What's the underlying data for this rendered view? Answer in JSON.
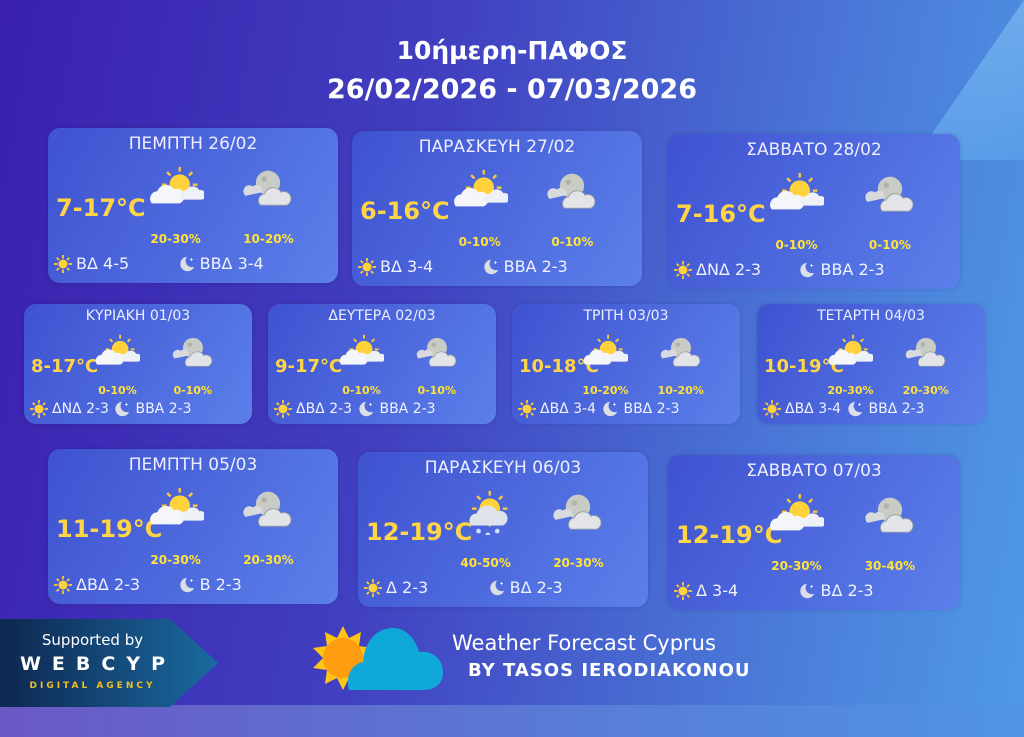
{
  "header": {
    "title": "10ήμερη-ΠΑΦΟΣ",
    "range": "26/02/2026 - 07/03/2026"
  },
  "colors": {
    "temp": "#ffd447",
    "pop": "#ffe23b",
    "card": "#4a66dc"
  },
  "days": [
    {
      "date": "ΠΕΜΠΤΗ 26/02",
      "temp": "7-17°C",
      "day_icon": "partly-sunny-icon",
      "night_icon": "cloudy-moon-icon",
      "day_pop": "20-30%",
      "night_pop": "10-20%",
      "day_wind": "ΒΔ 4-5",
      "night_wind": "ΒΒΔ 3-4"
    },
    {
      "date": "ΠΑΡΑΣΚΕΥΗ 27/02",
      "temp": "6-16°C",
      "day_icon": "partly-sunny-icon",
      "night_icon": "cloudy-moon-icon",
      "day_pop": "0-10%",
      "night_pop": "0-10%",
      "day_wind": "ΒΔ 3-4",
      "night_wind": "ΒΒΑ 2-3"
    },
    {
      "date": "ΣΑΒΒΑΤΟ 28/02",
      "temp": "7-16°C",
      "day_icon": "partly-sunny-icon",
      "night_icon": "cloudy-moon-icon",
      "day_pop": "0-10%",
      "night_pop": "0-10%",
      "day_wind": "ΔΝΔ 2-3",
      "night_wind": "ΒΒΑ 2-3"
    },
    {
      "date": "ΚΥΡΙΑΚΗ 01/03",
      "temp": "8-17°C",
      "day_icon": "partly-sunny-icon",
      "night_icon": "cloudy-moon-icon",
      "day_pop": "0-10%",
      "night_pop": "0-10%",
      "day_wind": "ΔΝΔ 2-3",
      "night_wind": "ΒΒΑ 2-3"
    },
    {
      "date": "ΔΕΥΤΕΡΑ 02/03",
      "temp": "9-17°C",
      "day_icon": "partly-sunny-icon",
      "night_icon": "cloudy-moon-icon",
      "day_pop": "0-10%",
      "night_pop": "0-10%",
      "day_wind": "ΔΒΔ 2-3",
      "night_wind": "ΒΒΑ 2-3"
    },
    {
      "date": "ΤΡΙΤΗ 03/03",
      "temp": "10-18°C",
      "day_icon": "partly-sunny-icon",
      "night_icon": "cloudy-moon-icon",
      "day_pop": "10-20%",
      "night_pop": "10-20%",
      "day_wind": "ΔΒΔ 3-4",
      "night_wind": "ΒΒΔ 2-3"
    },
    {
      "date": "ΤΕΤΑΡΤΗ 04/03",
      "temp": "10-19°C",
      "day_icon": "partly-sunny-icon",
      "night_icon": "cloudy-moon-icon",
      "day_pop": "20-30%",
      "night_pop": "20-30%",
      "day_wind": "ΔΒΔ 3-4",
      "night_wind": "ΒΒΔ 2-3"
    },
    {
      "date": "ΠΕΜΠΤΗ 05/03",
      "temp": "11-19°C",
      "day_icon": "partly-sunny-icon",
      "night_icon": "cloudy-moon-icon",
      "day_pop": "20-30%",
      "night_pop": "20-30%",
      "day_wind": "ΔΒΔ 2-3",
      "night_wind": "Β 2-3"
    },
    {
      "date": "ΠΑΡΑΣΚΕΥΗ 06/03",
      "temp": "12-19°C",
      "day_icon": "sun-rain-cloud-icon",
      "night_icon": "cloudy-moon-icon",
      "day_pop": "40-50%",
      "night_pop": "20-30%",
      "day_wind": "Δ 2-3",
      "night_wind": "ΒΔ 2-3"
    },
    {
      "date": "ΣΑΒΒΑΤΟ 07/03",
      "temp": "12-19°C",
      "day_icon": "partly-sunny-icon",
      "night_icon": "cloudy-moon-icon",
      "day_pop": "20-30%",
      "night_pop": "30-40%",
      "day_wind": "Δ 3-4",
      "night_wind": "ΒΔ 2-3"
    }
  ],
  "footer": {
    "supported_by": "Supported by",
    "agency": "WEBCYP",
    "agency_tag": "DIGITAL AGENCY",
    "brand": "Weather Forecast Cyprus",
    "brand_sub": "BY TASOS IERODIAKONOU"
  }
}
